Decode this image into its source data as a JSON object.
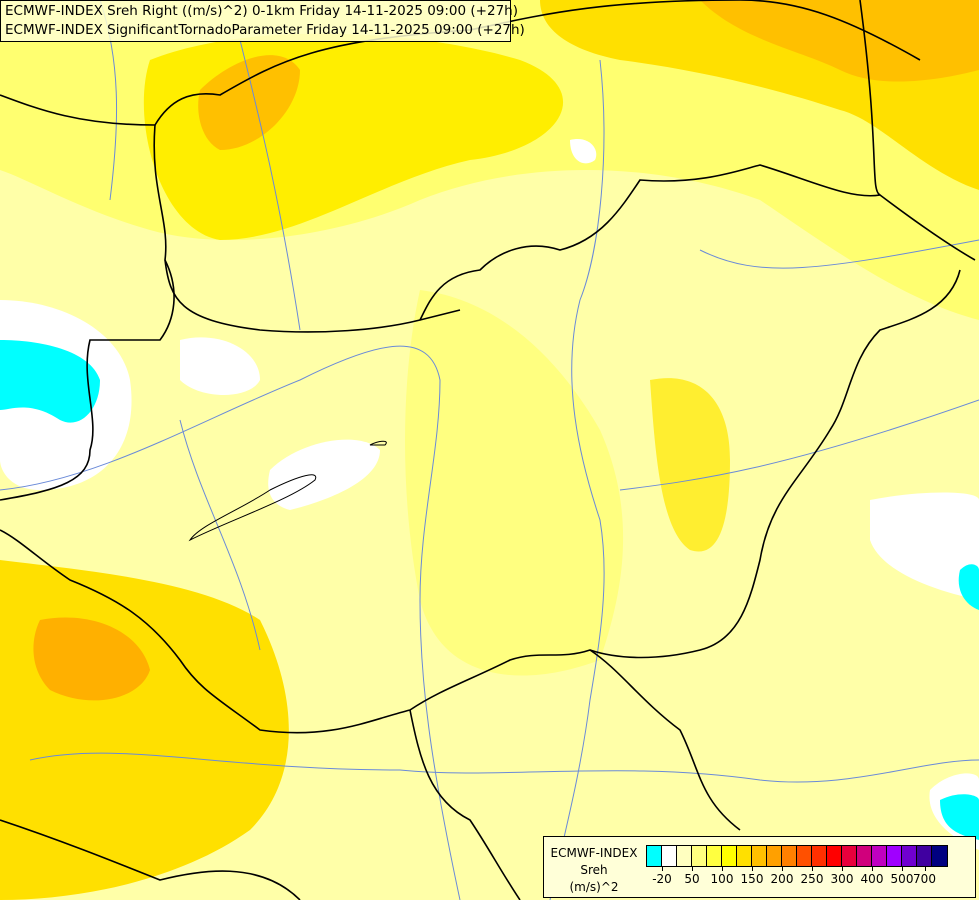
{
  "title": {
    "line1": "ECMWF-INDEX Sreh Right ((m/s)^2) 0-1km Friday 14-11-2025 09:00 (+27h)",
    "line2": "ECMWF-INDEX SignificantTornadoParameter Friday 14-11-2025 09:00 (+27h)"
  },
  "legend": {
    "line1": "ECMWF-INDEX",
    "line2": "Sreh",
    "line3": "(m/s)^2",
    "colors": [
      "#00ffff",
      "#ffffff",
      "#ffffc0",
      "#ffff80",
      "#ffff40",
      "#ffff00",
      "#ffe000",
      "#ffc000",
      "#ffa000",
      "#ff8000",
      "#ff5000",
      "#ff3000",
      "#ff0000",
      "#e8003c",
      "#d0007c",
      "#c000c0",
      "#a000ff",
      "#7000d0",
      "#4000a0",
      "#000080"
    ],
    "ticks": [
      "-20",
      "50",
      "100",
      "150",
      "200",
      "250",
      "300",
      "400",
      "500",
      "700"
    ]
  },
  "colors": {
    "border": "#000000",
    "river": "#6a8ad8",
    "background": "#ffffa8"
  }
}
